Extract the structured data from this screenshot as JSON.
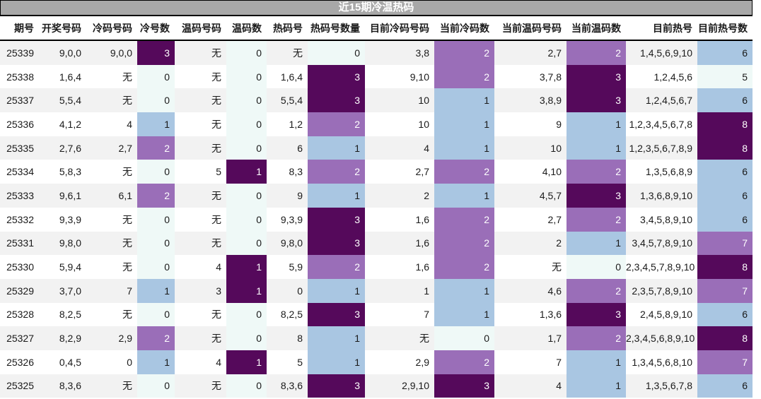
{
  "title": "近15期冷温热码",
  "colors": {
    "title_bg": "#a8a8a8",
    "title_fg": "#ffffff",
    "row_alt_bg": "#f2f2f2",
    "row_bg": "#ffffff",
    "header_fg": "#000000",
    "body_fg": "#1a1a1a",
    "levels": {
      "dark": {
        "bg": "#55095b",
        "fg": "#ffffff"
      },
      "mid": {
        "bg": "#9a6eb8",
        "fg": "#ffffff"
      },
      "blue": {
        "bg": "#a9c6e2",
        "fg": "#1a1a1a"
      },
      "pale": {
        "bg": "#eff9f7",
        "fg": "#1a1a1a"
      }
    }
  },
  "chart_data": {
    "type": "table",
    "title": "近15期冷温热码",
    "columns": [
      "期号",
      "开奖号码",
      "冷码号码",
      "冷号数",
      "温码号码",
      "温码数",
      "热码号",
      "热码号数量",
      "目前冷码号码",
      "当前冷码数",
      "当前温码号码",
      "当前温码数",
      "目前热号",
      "目前热号数"
    ],
    "column_keys": [
      "period",
      "draw-numbers",
      "cold-numbers",
      "cold-count",
      "warm-numbers",
      "warm-count",
      "hot-numbers",
      "hot-count",
      "current-cold-numbers",
      "current-cold-count",
      "current-warm-numbers",
      "current-warm-count",
      "current-hot-numbers",
      "current-hot-count"
    ],
    "heat_scale_legend": "0/5=pale, 1/6=blue, 2/7=mid, 3/8=dark (per-column normalized)",
    "rows": [
      [
        "25339",
        "9,0,0",
        "9,0,0",
        {
          "v": "3",
          "c": "dark"
        },
        "无",
        {
          "v": "0",
          "c": "pale"
        },
        "无",
        {
          "v": "0",
          "c": "pale"
        },
        "3,8",
        {
          "v": "2",
          "c": "mid"
        },
        "2,7",
        {
          "v": "2",
          "c": "mid"
        },
        "1,4,5,6,9,10",
        {
          "v": "6",
          "c": "blue"
        }
      ],
      [
        "25338",
        "1,6,4",
        "无",
        {
          "v": "0",
          "c": "pale"
        },
        "无",
        {
          "v": "0",
          "c": "pale"
        },
        "1,6,4",
        {
          "v": "3",
          "c": "dark"
        },
        "9,10",
        {
          "v": "2",
          "c": "mid"
        },
        "3,7,8",
        {
          "v": "3",
          "c": "dark"
        },
        "1,2,4,5,6",
        {
          "v": "5",
          "c": "pale"
        }
      ],
      [
        "25337",
        "5,5,4",
        "无",
        {
          "v": "0",
          "c": "pale"
        },
        "无",
        {
          "v": "0",
          "c": "pale"
        },
        "5,5,4",
        {
          "v": "3",
          "c": "dark"
        },
        "10",
        {
          "v": "1",
          "c": "blue"
        },
        "3,8,9",
        {
          "v": "3",
          "c": "dark"
        },
        "1,2,4,5,6,7",
        {
          "v": "6",
          "c": "blue"
        }
      ],
      [
        "25336",
        "4,1,2",
        "4",
        {
          "v": "1",
          "c": "blue"
        },
        "无",
        {
          "v": "0",
          "c": "pale"
        },
        "1,2",
        {
          "v": "2",
          "c": "mid"
        },
        "10",
        {
          "v": "1",
          "c": "blue"
        },
        "9",
        {
          "v": "1",
          "c": "blue"
        },
        "1,2,3,4,5,6,7,8",
        {
          "v": "8",
          "c": "dark"
        }
      ],
      [
        "25335",
        "2,7,6",
        "2,7",
        {
          "v": "2",
          "c": "mid"
        },
        "无",
        {
          "v": "0",
          "c": "pale"
        },
        "6",
        {
          "v": "1",
          "c": "blue"
        },
        "4",
        {
          "v": "1",
          "c": "blue"
        },
        "10",
        {
          "v": "1",
          "c": "blue"
        },
        "1,2,3,5,6,7,8,9",
        {
          "v": "8",
          "c": "dark"
        }
      ],
      [
        "25334",
        "5,8,3",
        "无",
        {
          "v": "0",
          "c": "pale"
        },
        "5",
        {
          "v": "1",
          "c": "dark"
        },
        "8,3",
        {
          "v": "2",
          "c": "mid"
        },
        "2,7",
        {
          "v": "2",
          "c": "mid"
        },
        "4,10",
        {
          "v": "2",
          "c": "mid"
        },
        "1,3,5,6,8,9",
        {
          "v": "6",
          "c": "blue"
        }
      ],
      [
        "25333",
        "9,6,1",
        "6,1",
        {
          "v": "2",
          "c": "mid"
        },
        "无",
        {
          "v": "0",
          "c": "pale"
        },
        "9",
        {
          "v": "1",
          "c": "blue"
        },
        "2",
        {
          "v": "1",
          "c": "blue"
        },
        "4,5,7",
        {
          "v": "3",
          "c": "dark"
        },
        "1,3,6,8,9,10",
        {
          "v": "6",
          "c": "blue"
        }
      ],
      [
        "25332",
        "9,3,9",
        "无",
        {
          "v": "0",
          "c": "pale"
        },
        "无",
        {
          "v": "0",
          "c": "pale"
        },
        "9,3,9",
        {
          "v": "3",
          "c": "dark"
        },
        "1,6",
        {
          "v": "2",
          "c": "mid"
        },
        "2,7",
        {
          "v": "2",
          "c": "mid"
        },
        "3,4,5,8,9,10",
        {
          "v": "6",
          "c": "blue"
        }
      ],
      [
        "25331",
        "9,8,0",
        "无",
        {
          "v": "0",
          "c": "pale"
        },
        "无",
        {
          "v": "0",
          "c": "pale"
        },
        "9,8,0",
        {
          "v": "3",
          "c": "dark"
        },
        "1,6",
        {
          "v": "2",
          "c": "mid"
        },
        "2",
        {
          "v": "1",
          "c": "blue"
        },
        "3,4,5,7,8,9,10",
        {
          "v": "7",
          "c": "mid"
        }
      ],
      [
        "25330",
        "5,9,4",
        "无",
        {
          "v": "0",
          "c": "pale"
        },
        "4",
        {
          "v": "1",
          "c": "dark"
        },
        "5,9",
        {
          "v": "2",
          "c": "mid"
        },
        "1,6",
        {
          "v": "2",
          "c": "mid"
        },
        "无",
        {
          "v": "0",
          "c": "pale"
        },
        "2,3,4,5,7,8,9,10",
        {
          "v": "8",
          "c": "dark"
        }
      ],
      [
        "25329",
        "3,7,0",
        "7",
        {
          "v": "1",
          "c": "blue"
        },
        "3",
        {
          "v": "1",
          "c": "dark"
        },
        "0",
        {
          "v": "1",
          "c": "blue"
        },
        "1",
        {
          "v": "1",
          "c": "blue"
        },
        "4,6",
        {
          "v": "2",
          "c": "mid"
        },
        "2,3,5,7,8,9,10",
        {
          "v": "7",
          "c": "mid"
        }
      ],
      [
        "25328",
        "8,2,5",
        "无",
        {
          "v": "0",
          "c": "pale"
        },
        "无",
        {
          "v": "0",
          "c": "pale"
        },
        "8,2,5",
        {
          "v": "3",
          "c": "dark"
        },
        "7",
        {
          "v": "1",
          "c": "blue"
        },
        "1,3,6",
        {
          "v": "3",
          "c": "dark"
        },
        "2,4,5,8,9,10",
        {
          "v": "6",
          "c": "blue"
        }
      ],
      [
        "25327",
        "8,2,9",
        "2,9",
        {
          "v": "2",
          "c": "mid"
        },
        "无",
        {
          "v": "0",
          "c": "pale"
        },
        "8",
        {
          "v": "1",
          "c": "blue"
        },
        "无",
        {
          "v": "0",
          "c": "pale"
        },
        "1,7",
        {
          "v": "2",
          "c": "mid"
        },
        "2,3,4,5,6,8,9,10",
        {
          "v": "8",
          "c": "dark"
        }
      ],
      [
        "25326",
        "0,4,5",
        "0",
        {
          "v": "1",
          "c": "blue"
        },
        "4",
        {
          "v": "1",
          "c": "dark"
        },
        "5",
        {
          "v": "1",
          "c": "blue"
        },
        "2,9",
        {
          "v": "2",
          "c": "mid"
        },
        "7",
        {
          "v": "1",
          "c": "blue"
        },
        "1,3,4,5,6,8,10",
        {
          "v": "7",
          "c": "mid"
        }
      ],
      [
        "25325",
        "8,3,6",
        "无",
        {
          "v": "0",
          "c": "pale"
        },
        "无",
        {
          "v": "0",
          "c": "pale"
        },
        "8,3,6",
        {
          "v": "3",
          "c": "dark"
        },
        "2,9,10",
        {
          "v": "3",
          "c": "dark"
        },
        "4",
        {
          "v": "1",
          "c": "blue"
        },
        "1,3,5,6,7,8",
        {
          "v": "6",
          "c": "blue"
        }
      ]
    ]
  }
}
